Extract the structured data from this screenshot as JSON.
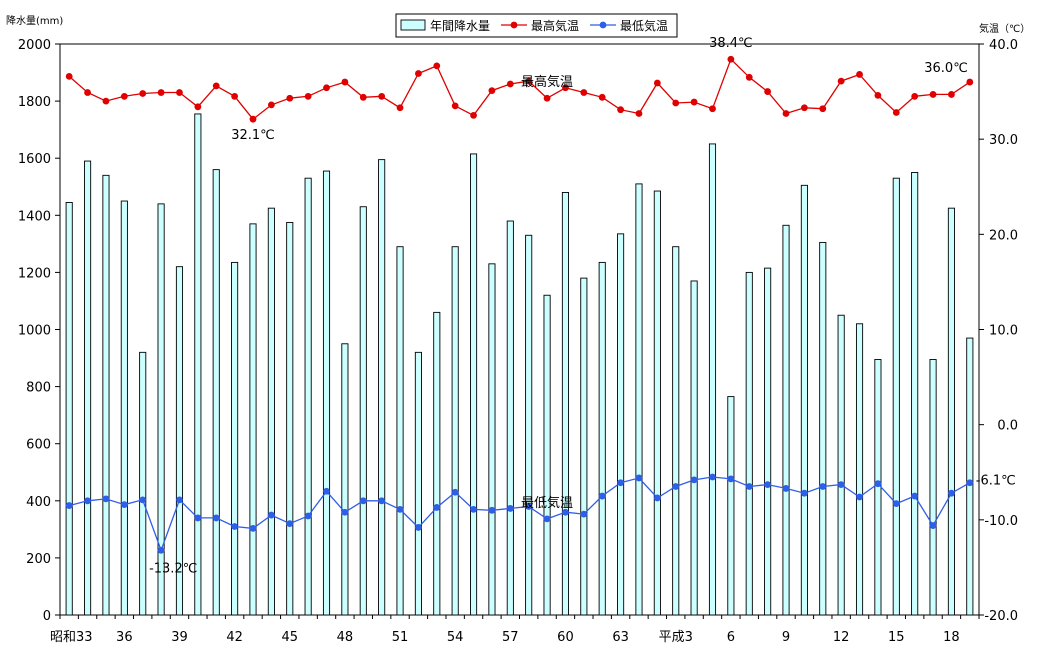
{
  "chart_data": {
    "type": "bar",
    "left_axis_label": "降水量(mm)",
    "right_axis_label": "気温（℃）",
    "left_axis": {
      "min": 0,
      "max": 2000,
      "step": 200,
      "tick_labels": [
        "0",
        "200",
        "400",
        "600",
        "800",
        "1000",
        "1200",
        "1400",
        "1600",
        "1800",
        "2000"
      ]
    },
    "right_axis": {
      "min": -20,
      "max": 40,
      "step": 10,
      "tick_labels": [
        "-20.0",
        "-10.0",
        "0.0",
        "10.0",
        "20.0",
        "30.0",
        "40.0"
      ]
    },
    "x_tick_labels": [
      {
        "index": 0,
        "label": "昭和33"
      },
      {
        "index": 3,
        "label": "36"
      },
      {
        "index": 6,
        "label": "39"
      },
      {
        "index": 9,
        "label": "42"
      },
      {
        "index": 12,
        "label": "45"
      },
      {
        "index": 15,
        "label": "48"
      },
      {
        "index": 18,
        "label": "51"
      },
      {
        "index": 21,
        "label": "54"
      },
      {
        "index": 24,
        "label": "57"
      },
      {
        "index": 27,
        "label": "60"
      },
      {
        "index": 30,
        "label": "63"
      },
      {
        "index": 33,
        "label": "平成3"
      },
      {
        "index": 36,
        "label": "6"
      },
      {
        "index": 39,
        "label": "9"
      },
      {
        "index": 42,
        "label": "12"
      },
      {
        "index": 45,
        "label": "15"
      },
      {
        "index": 48,
        "label": "18"
      }
    ],
    "legend": {
      "placement": "top-center",
      "items": [
        {
          "label": "年間降水量",
          "kind": "bar"
        },
        {
          "label": "最高気温",
          "kind": "line",
          "color": "#e00000"
        },
        {
          "label": "最低気温",
          "kind": "line",
          "color": "#2e5fe8"
        }
      ]
    },
    "precipitation": {
      "axis": "left",
      "fill": "#ccffff",
      "values": [
        1445,
        1590,
        1540,
        1450,
        920,
        1440,
        1220,
        1755,
        1560,
        1235,
        1370,
        1425,
        1375,
        1530,
        1555,
        950,
        1430,
        1595,
        1290,
        920,
        1060,
        1290,
        1615,
        1230,
        1380,
        1330,
        1120,
        1480,
        1180,
        1235,
        1335,
        1510,
        1485,
        1290,
        1170,
        1650,
        765,
        1200,
        1215,
        1365,
        1505,
        1305,
        1050,
        1020,
        895,
        1530,
        1550,
        895,
        1425,
        970
      ]
    },
    "max_temp": {
      "axis": "right",
      "color": "#e00000",
      "values": [
        36.6,
        34.9,
        34.0,
        34.5,
        34.8,
        34.9,
        34.9,
        33.4,
        35.6,
        34.5,
        32.1,
        33.6,
        34.3,
        34.5,
        35.4,
        36.0,
        34.4,
        34.5,
        33.3,
        36.9,
        37.7,
        33.5,
        32.5,
        35.1,
        35.8,
        36.1,
        34.3,
        35.4,
        34.9,
        34.4,
        33.1,
        32.7,
        35.9,
        33.8,
        33.9,
        33.2,
        38.4,
        36.5,
        35.0,
        32.7,
        33.3,
        33.2,
        36.1,
        36.8,
        34.6,
        32.8,
        34.5,
        34.7,
        34.7,
        36.0
      ]
    },
    "min_temp": {
      "axis": "right",
      "color": "#2e5fe8",
      "values": [
        -8.5,
        -8.0,
        -7.8,
        -8.4,
        -7.9,
        -13.2,
        -7.9,
        -9.8,
        -9.8,
        -10.7,
        -10.9,
        -9.5,
        -10.4,
        -9.6,
        -7.0,
        -9.2,
        -8.0,
        -8.0,
        -8.9,
        -10.8,
        -8.7,
        -7.1,
        -8.9,
        -9.0,
        -8.8,
        -8.6,
        -9.9,
        -9.2,
        -9.4,
        -7.5,
        -6.1,
        -5.6,
        -7.7,
        -6.5,
        -5.8,
        -5.5,
        -5.7,
        -6.5,
        -6.3,
        -6.7,
        -7.2,
        -6.5,
        -6.3,
        -7.6,
        -6.2,
        -8.3,
        -7.5,
        -10.6,
        -7.2,
        -6.1
      ]
    },
    "annotations": [
      {
        "text": "32.1℃",
        "series": "max_temp",
        "index": 10,
        "placement": "below"
      },
      {
        "text": "38.4℃",
        "series": "max_temp",
        "index": 36,
        "placement": "above"
      },
      {
        "text": "36.0℃",
        "series": "max_temp",
        "index": 49,
        "placement": "above-left"
      },
      {
        "text": "-13.2℃",
        "series": "min_temp",
        "index": 5,
        "placement": "below-right"
      },
      {
        "text": "-6.1℃",
        "series": "min_temp",
        "index": 49,
        "placement": "right"
      },
      {
        "text": "最高気温",
        "series": "max_temp",
        "index": 26,
        "placement": "above"
      },
      {
        "text": "最低気温",
        "series": "min_temp",
        "index": 26,
        "placement": "above"
      }
    ]
  }
}
